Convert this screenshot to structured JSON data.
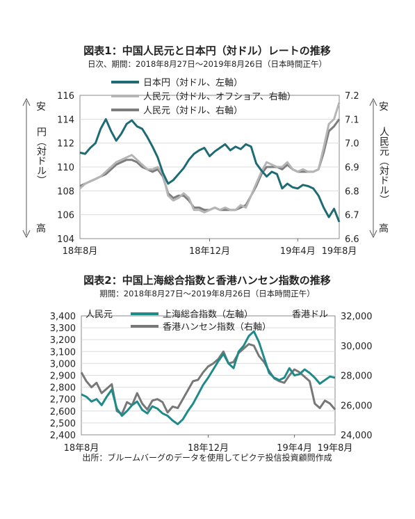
{
  "chart_data": [
    {
      "type": "line",
      "title": "図表1：中国人民元と日本円（対ドル）レートの推移",
      "subtitle": "日次、期間：2018年8月27日～2019年8月26日（日本時間正午）",
      "left_axis_label": "円（対ドル）",
      "left_top_label": "安",
      "left_bottom_label": "高",
      "right_axis_label": "人民元（対ドル）",
      "right_top_label": "安",
      "right_bottom_label": "高",
      "x_tick_labels": [
        "18年8月",
        "18年12月",
        "19年4月",
        "19年8月"
      ],
      "y_left": {
        "min": 104,
        "max": 116,
        "ticks": [
          "116",
          "114",
          "112",
          "110",
          "108",
          "106",
          "104"
        ]
      },
      "y_right": {
        "min": 6.6,
        "max": 7.2,
        "ticks": [
          "7.2",
          "7.1",
          "7.0",
          "6.9",
          "6.8",
          "6.7",
          "6.6"
        ]
      },
      "grid": true,
      "legend_position": "top",
      "series": [
        {
          "name": "日本円（対ドル、左軸）",
          "axis": "left",
          "color": "#1f6b73",
          "x": [
            0,
            0.02,
            0.04,
            0.06,
            0.08,
            0.1,
            0.12,
            0.14,
            0.16,
            0.18,
            0.2,
            0.22,
            0.24,
            0.26,
            0.28,
            0.3,
            0.32,
            0.34,
            0.36,
            0.38,
            0.4,
            0.42,
            0.44,
            0.46,
            0.48,
            0.5,
            0.52,
            0.54,
            0.56,
            0.58,
            0.6,
            0.62,
            0.64,
            0.66,
            0.68,
            0.7,
            0.72,
            0.74,
            0.76,
            0.78,
            0.8,
            0.82,
            0.84,
            0.86,
            0.88,
            0.9,
            0.92,
            0.94,
            0.96,
            0.98,
            1.0
          ],
          "values": [
            111.2,
            111.1,
            111.6,
            112.0,
            113.2,
            114.0,
            113.0,
            112.2,
            112.8,
            113.6,
            113.9,
            113.4,
            113.2,
            112.5,
            111.7,
            110.8,
            109.5,
            108.6,
            108.9,
            109.4,
            109.9,
            110.6,
            111.1,
            111.4,
            111.6,
            110.9,
            111.3,
            111.6,
            111.9,
            111.4,
            111.7,
            111.5,
            111.9,
            111.7,
            110.3,
            109.7,
            109.2,
            109.6,
            109.4,
            108.2,
            108.6,
            108.3,
            108.2,
            108.5,
            108.4,
            108.2,
            107.6,
            106.6,
            105.8,
            106.5,
            105.4
          ]
        },
        {
          "name": "人民元（対ドル、オフショア、右軸）",
          "axis": "right",
          "color": "#b5b5b5",
          "x": [
            0,
            0.02,
            0.04,
            0.06,
            0.08,
            0.1,
            0.12,
            0.14,
            0.16,
            0.18,
            0.2,
            0.22,
            0.24,
            0.26,
            0.28,
            0.3,
            0.32,
            0.34,
            0.36,
            0.38,
            0.4,
            0.42,
            0.44,
            0.46,
            0.48,
            0.5,
            0.52,
            0.54,
            0.56,
            0.58,
            0.6,
            0.62,
            0.64,
            0.66,
            0.68,
            0.7,
            0.72,
            0.74,
            0.76,
            0.78,
            0.8,
            0.82,
            0.84,
            0.86,
            0.88,
            0.9,
            0.92,
            0.94,
            0.96,
            0.98,
            1.0
          ],
          "values": [
            6.81,
            6.83,
            6.84,
            6.85,
            6.86,
            6.88,
            6.9,
            6.92,
            6.93,
            6.94,
            6.95,
            6.93,
            6.91,
            6.89,
            6.89,
            6.9,
            6.87,
            6.78,
            6.76,
            6.77,
            6.79,
            6.77,
            6.72,
            6.72,
            6.71,
            6.72,
            6.73,
            6.72,
            6.73,
            6.72,
            6.72,
            6.74,
            6.73,
            6.78,
            6.83,
            6.88,
            6.92,
            6.91,
            6.9,
            6.9,
            6.92,
            6.89,
            6.88,
            6.89,
            6.88,
            6.88,
            6.89,
            6.98,
            7.08,
            7.1,
            7.17
          ]
        },
        {
          "name": "人民元（対ドル、右軸）",
          "axis": "right",
          "color": "#7d7d7d",
          "x": [
            0,
            0.02,
            0.04,
            0.06,
            0.08,
            0.1,
            0.12,
            0.14,
            0.16,
            0.18,
            0.2,
            0.22,
            0.24,
            0.26,
            0.28,
            0.3,
            0.32,
            0.34,
            0.36,
            0.38,
            0.4,
            0.42,
            0.44,
            0.46,
            0.48,
            0.5,
            0.52,
            0.54,
            0.56,
            0.58,
            0.6,
            0.62,
            0.64,
            0.66,
            0.68,
            0.7,
            0.72,
            0.74,
            0.76,
            0.78,
            0.8,
            0.82,
            0.84,
            0.86,
            0.88,
            0.9,
            0.92,
            0.94,
            0.96,
            0.98,
            1.0
          ],
          "values": [
            6.82,
            6.83,
            6.84,
            6.85,
            6.86,
            6.87,
            6.89,
            6.91,
            6.92,
            6.93,
            6.93,
            6.92,
            6.9,
            6.89,
            6.88,
            6.89,
            6.86,
            6.79,
            6.77,
            6.78,
            6.78,
            6.76,
            6.73,
            6.73,
            6.72,
            6.72,
            6.73,
            6.72,
            6.72,
            6.72,
            6.72,
            6.73,
            6.74,
            6.78,
            6.82,
            6.87,
            6.9,
            6.9,
            6.9,
            6.89,
            6.91,
            6.89,
            6.88,
            6.88,
            6.88,
            6.88,
            6.89,
            6.96,
            7.05,
            7.07,
            7.1
          ]
        }
      ]
    },
    {
      "type": "line",
      "title": "図表2：中国上海総合指数と香港ハンセン指数の推移",
      "subtitle": "期間：2018年8月27日～2019年8月26日（日本時間正午）",
      "left_unit": "人民元",
      "right_unit": "香港ドル",
      "x_tick_labels": [
        "18年8月",
        "18年12月",
        "19年4月",
        "19年8月"
      ],
      "y_left": {
        "min": 2400,
        "max": 3400,
        "ticks": [
          "3,400",
          "3,300",
          "3,200",
          "3,100",
          "3,000",
          "2,900",
          "2,800",
          "2,700",
          "2,600",
          "2,500",
          "2,400"
        ]
      },
      "y_right": {
        "min": 24000,
        "max": 32000,
        "ticks": [
          "32,000",
          "30,000",
          "28,000",
          "26,000",
          "24,000"
        ]
      },
      "grid": true,
      "legend_position": "top",
      "series": [
        {
          "name": "上海総合指数（左軸）",
          "axis": "left",
          "color": "#1f8a8a",
          "x": [
            0,
            0.02,
            0.04,
            0.06,
            0.08,
            0.1,
            0.12,
            0.14,
            0.16,
            0.18,
            0.2,
            0.22,
            0.24,
            0.26,
            0.28,
            0.3,
            0.32,
            0.34,
            0.36,
            0.38,
            0.4,
            0.42,
            0.44,
            0.46,
            0.48,
            0.5,
            0.52,
            0.54,
            0.56,
            0.58,
            0.6,
            0.62,
            0.64,
            0.66,
            0.68,
            0.7,
            0.72,
            0.74,
            0.76,
            0.78,
            0.8,
            0.82,
            0.84,
            0.86,
            0.88,
            0.9,
            0.92,
            0.94,
            0.96,
            0.98,
            1.0
          ],
          "values": [
            2740,
            2720,
            2680,
            2700,
            2650,
            2720,
            2780,
            2620,
            2560,
            2600,
            2650,
            2680,
            2610,
            2580,
            2640,
            2620,
            2580,
            2560,
            2520,
            2490,
            2530,
            2600,
            2660,
            2740,
            2820,
            2880,
            2950,
            3020,
            3080,
            3000,
            2960,
            3100,
            3150,
            3230,
            3270,
            3180,
            3050,
            2920,
            2880,
            2860,
            2880,
            2960,
            2900,
            2910,
            2950,
            2920,
            2880,
            2830,
            2860,
            2890,
            2880
          ]
        },
        {
          "name": "香港ハンセン指数（右軸）",
          "axis": "right",
          "color": "#777777",
          "x": [
            0,
            0.02,
            0.04,
            0.06,
            0.08,
            0.1,
            0.12,
            0.14,
            0.16,
            0.18,
            0.2,
            0.22,
            0.24,
            0.26,
            0.28,
            0.3,
            0.32,
            0.34,
            0.36,
            0.38,
            0.4,
            0.42,
            0.44,
            0.46,
            0.48,
            0.5,
            0.52,
            0.54,
            0.56,
            0.58,
            0.6,
            0.62,
            0.64,
            0.66,
            0.68,
            0.7,
            0.72,
            0.74,
            0.76,
            0.78,
            0.8,
            0.82,
            0.84,
            0.86,
            0.88,
            0.9,
            0.92,
            0.94,
            0.96,
            0.98,
            1.0
          ],
          "values": [
            28200,
            27600,
            27200,
            27500,
            26800,
            27100,
            27400,
            25600,
            25400,
            26200,
            26000,
            26800,
            26100,
            25700,
            26300,
            26400,
            26200,
            25500,
            25900,
            25800,
            26400,
            27000,
            27600,
            27700,
            28200,
            28600,
            28800,
            29100,
            29600,
            28800,
            28900,
            29500,
            29800,
            30100,
            30000,
            29300,
            28900,
            28300,
            27800,
            27600,
            27500,
            28000,
            28400,
            28200,
            27900,
            27600,
            26100,
            25800,
            26300,
            26100,
            25700
          ]
        }
      ]
    }
  ],
  "source": "出所：ブルームバーグのデータを使用してピクテ投信投資顧問作成"
}
